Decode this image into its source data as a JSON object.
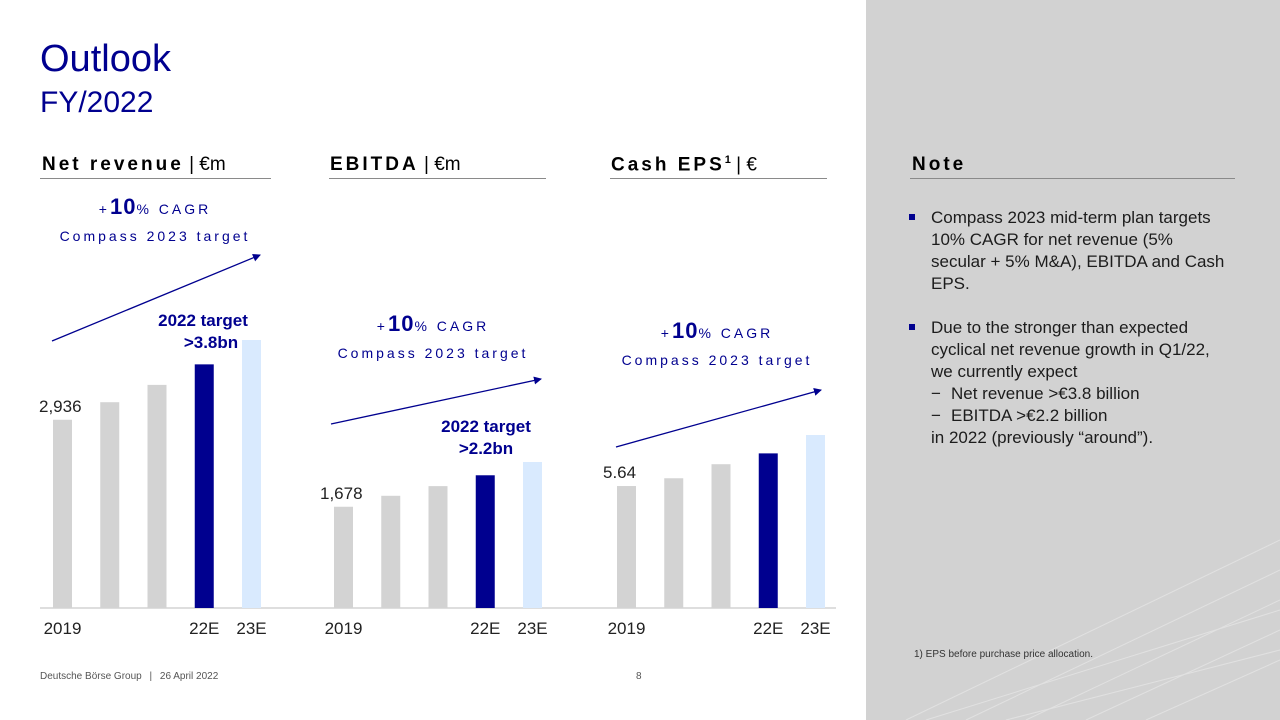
{
  "slide": {
    "title": "Outlook",
    "subtitle": "FY/2022"
  },
  "note": {
    "title": "Note",
    "bullets": [
      {
        "text": "Compass 2023 mid-term plan targets 10% CAGR for net revenue (5% secular + 5% M&A), EBITDA and Cash EPS."
      },
      {
        "text": "Due to the stronger than expected cyclical net revenue growth in Q1/22, we currently expect",
        "sub": [
          "Net revenue >€3.8 billion",
          "EBITDA >€2.2 billion"
        ],
        "tail": "in 2022 (previously “around”)."
      }
    ],
    "footnote": "1) EPS before purchase price allocation."
  },
  "footer": {
    "company": "Deutsche Börse Group",
    "separator": "|",
    "date": "26 April 2022",
    "page": "8"
  },
  "colors": {
    "accent": "#00008f",
    "bar_grey": "#d3d3d3",
    "bar_highlight": "#00008f",
    "bar_light": "#d9eafe",
    "panel": "#d2d2d2"
  },
  "chart_data": [
    {
      "type": "bar",
      "title": "Net revenue",
      "unit": "| €m",
      "categories": [
        "2019",
        "",
        "",
        "22E",
        "23E"
      ],
      "values": [
        2936,
        3210,
        3480,
        3800,
        4180
      ],
      "first_label": "2,936",
      "target_label": [
        "2022 target",
        ">3.8bn"
      ],
      "cagr": {
        "prefix": "+",
        "value": "10",
        "suffix": "% CAGR",
        "caption": "Compass 2023 target"
      }
    },
    {
      "type": "bar",
      "title": "EBITDA",
      "unit": "| €m",
      "categories": [
        "2019",
        "",
        "",
        "22E",
        "23E"
      ],
      "values": [
        1678,
        1860,
        2020,
        2200,
        2420
      ],
      "first_label": "1,678",
      "target_label": [
        "2022 target",
        ">2.2bn"
      ],
      "cagr": {
        "prefix": "+",
        "value": "10",
        "suffix": "% CAGR",
        "caption": "Compass 2023 target"
      }
    },
    {
      "type": "bar",
      "title": "Cash EPS",
      "superscript": "1",
      "unit": "| €",
      "categories": [
        "2019",
        "",
        "",
        "22E",
        "23E"
      ],
      "values": [
        5.64,
        6.0,
        6.65,
        7.15,
        8.0
      ],
      "first_label": "5.64",
      "cagr": {
        "prefix": "+",
        "value": "10",
        "suffix": "% CAGR",
        "caption": "Compass 2023 target"
      }
    }
  ]
}
